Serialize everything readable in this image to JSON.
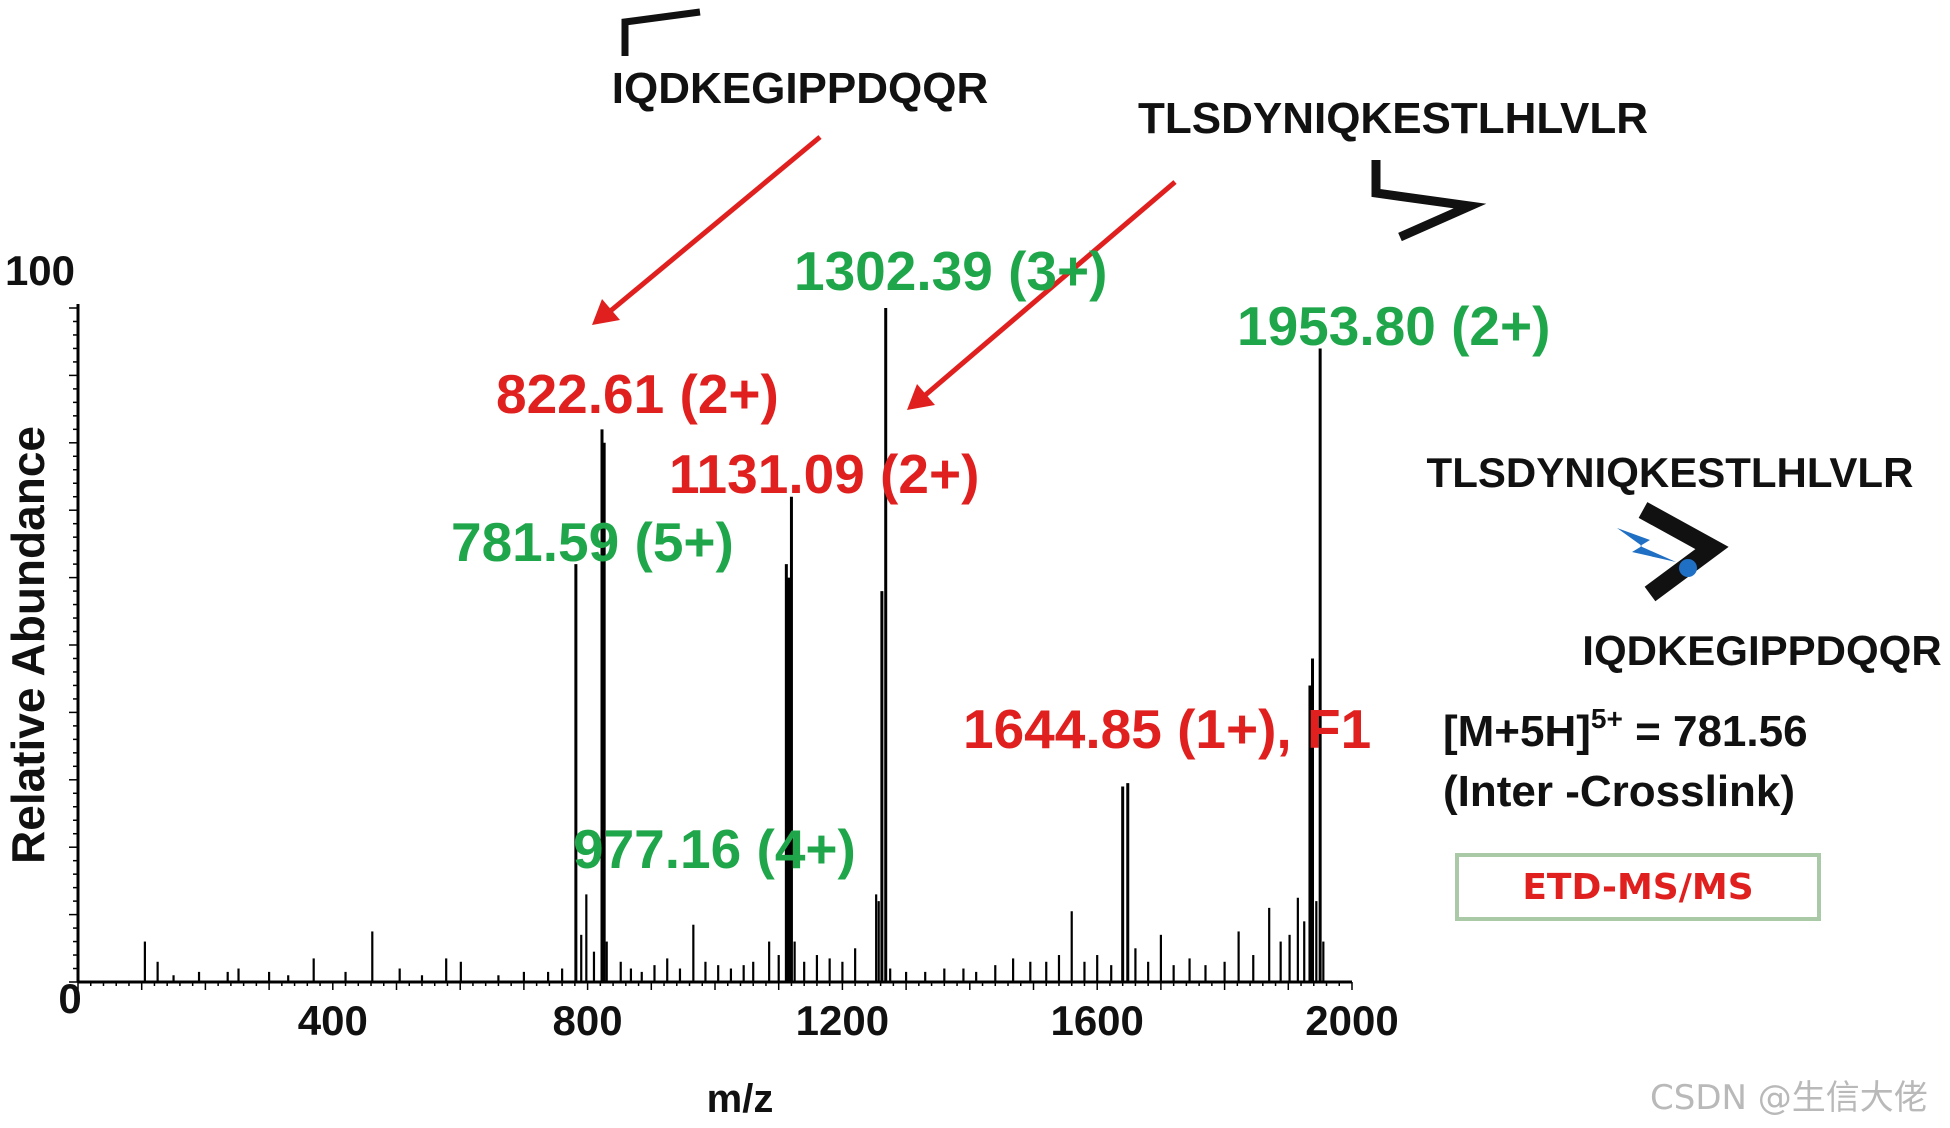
{
  "chart_data": {
    "type": "bar",
    "xlabel": "m/z",
    "ylabel": "Relative Abundance",
    "xlim": [
      0,
      2000
    ],
    "ylim": [
      0,
      100
    ],
    "x_ticks": [
      "0",
      "400",
      "800",
      "1200",
      "1600",
      "2000"
    ],
    "y_ticks": [
      "0",
      "100"
    ],
    "peaks": [
      {
        "x": 105,
        "y": 6
      },
      {
        "x": 125,
        "y": 3
      },
      {
        "x": 150,
        "y": 1
      },
      {
        "x": 190,
        "y": 1.5
      },
      {
        "x": 235,
        "y": 1.5
      },
      {
        "x": 252,
        "y": 2
      },
      {
        "x": 300,
        "y": 1.5
      },
      {
        "x": 330,
        "y": 1
      },
      {
        "x": 370,
        "y": 3.5
      },
      {
        "x": 420,
        "y": 1.5
      },
      {
        "x": 462,
        "y": 7.5
      },
      {
        "x": 505,
        "y": 2
      },
      {
        "x": 540,
        "y": 1
      },
      {
        "x": 578,
        "y": 3.5
      },
      {
        "x": 601,
        "y": 3
      },
      {
        "x": 660,
        "y": 1
      },
      {
        "x": 700,
        "y": 1.5
      },
      {
        "x": 738,
        "y": 1.5
      },
      {
        "x": 760,
        "y": 2
      },
      {
        "x": 781.59,
        "y": 62
      },
      {
        "x": 790,
        "y": 7
      },
      {
        "x": 798,
        "y": 13
      },
      {
        "x": 810,
        "y": 4.5
      },
      {
        "x": 822.61,
        "y": 82
      },
      {
        "x": 826,
        "y": 80
      },
      {
        "x": 830,
        "y": 6
      },
      {
        "x": 852,
        "y": 3
      },
      {
        "x": 868,
        "y": 2
      },
      {
        "x": 885,
        "y": 1.5
      },
      {
        "x": 905,
        "y": 2.5
      },
      {
        "x": 925,
        "y": 3.5
      },
      {
        "x": 945,
        "y": 2
      },
      {
        "x": 966,
        "y": 8.5
      },
      {
        "x": 985,
        "y": 3
      },
      {
        "x": 1005,
        "y": 2.5
      },
      {
        "x": 1025,
        "y": 2
      },
      {
        "x": 1045,
        "y": 2.5
      },
      {
        "x": 1060,
        "y": 3
      },
      {
        "x": 1085,
        "y": 6
      },
      {
        "x": 1100,
        "y": 4
      },
      {
        "x": 1112,
        "y": 62
      },
      {
        "x": 1116,
        "y": 60
      },
      {
        "x": 1120,
        "y": 72
      },
      {
        "x": 1125,
        "y": 6
      },
      {
        "x": 1140,
        "y": 3
      },
      {
        "x": 1160,
        "y": 4
      },
      {
        "x": 1180,
        "y": 3.5
      },
      {
        "x": 1200,
        "y": 3
      },
      {
        "x": 1220,
        "y": 5
      },
      {
        "x": 1253,
        "y": 13
      },
      {
        "x": 1257,
        "y": 12
      },
      {
        "x": 1262,
        "y": 58
      },
      {
        "x": 1268,
        "y": 100
      },
      {
        "x": 1275,
        "y": 2
      },
      {
        "x": 1300,
        "y": 1.5
      },
      {
        "x": 1330,
        "y": 1.5
      },
      {
        "x": 1360,
        "y": 2
      },
      {
        "x": 1390,
        "y": 2
      },
      {
        "x": 1410,
        "y": 1.5
      },
      {
        "x": 1440,
        "y": 2.5
      },
      {
        "x": 1468,
        "y": 3.5
      },
      {
        "x": 1495,
        "y": 3
      },
      {
        "x": 1520,
        "y": 3
      },
      {
        "x": 1540,
        "y": 4
      },
      {
        "x": 1560,
        "y": 10.5
      },
      {
        "x": 1580,
        "y": 3
      },
      {
        "x": 1600,
        "y": 4
      },
      {
        "x": 1622,
        "y": 2.5
      },
      {
        "x": 1640,
        "y": 29
      },
      {
        "x": 1648,
        "y": 29.5
      },
      {
        "x": 1660,
        "y": 5
      },
      {
        "x": 1680,
        "y": 3
      },
      {
        "x": 1700,
        "y": 7
      },
      {
        "x": 1720,
        "y": 2.5
      },
      {
        "x": 1745,
        "y": 3.5
      },
      {
        "x": 1770,
        "y": 2.5
      },
      {
        "x": 1800,
        "y": 3
      },
      {
        "x": 1822,
        "y": 7.5
      },
      {
        "x": 1845,
        "y": 4
      },
      {
        "x": 1870,
        "y": 11
      },
      {
        "x": 1888,
        "y": 6
      },
      {
        "x": 1902,
        "y": 7
      },
      {
        "x": 1915,
        "y": 12.5
      },
      {
        "x": 1925,
        "y": 9
      },
      {
        "x": 1934,
        "y": 44
      },
      {
        "x": 1938,
        "y": 48
      },
      {
        "x": 1944,
        "y": 12
      },
      {
        "x": 1950,
        "y": 94
      },
      {
        "x": 1955,
        "y": 6
      }
    ],
    "annotations": [
      {
        "text": "1302.39 (3+)",
        "color": "#1fa64a",
        "x": 1128,
        "y": 102
      },
      {
        "text": "1953.80 (2+)",
        "color": "#1fa64a",
        "x": 1808,
        "y": 95
      },
      {
        "text": "822.61 (2+)",
        "color": "#e0201e",
        "x": 686,
        "y": 87
      },
      {
        "text": "1131.09 (2+)",
        "color": "#e0201e",
        "x": 938,
        "y": 76
      },
      {
        "text": "781.59 (5+)",
        "color": "#1fa64a",
        "x": 574,
        "y": 65
      },
      {
        "text": "1644.85 (1+), F1",
        "color": "#e0201e",
        "x": 1380,
        "y": 35
      },
      {
        "text": "977.16 (4+)",
        "color": "#1fa64a",
        "x": 740,
        "y": 16
      }
    ]
  },
  "peptide_top_left": "IQDKEGIPPDQQR",
  "peptide_top_right": "TLSDYNIQKESTLHLVLR",
  "crosslink_peptide_1": "TLSDYNIQKESTLHLVLR",
  "crosslink_peptide_2": "IQDKEGIPPDQQR",
  "precursor_prefix": "[M+5H]",
  "precursor_charge": "5+",
  "precursor_value": " = 781.56",
  "precursor_type": "(Inter -Crosslink)",
  "method_label": "ETD-MS/MS",
  "watermark": "CSDN @生信大佬",
  "colors": {
    "green": "#1fa64a",
    "red": "#e0201e",
    "arrow": "#e0201e",
    "box_border": "#a9c9a7",
    "blue": "#1f6fc4"
  }
}
